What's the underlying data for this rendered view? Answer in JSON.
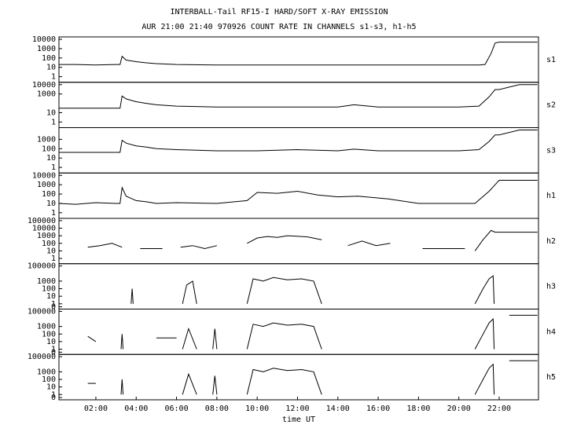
{
  "chart_data": [
    {
      "type": "line",
      "title": "INTERBALL-Tail RF15-I HARD/SOFT X-RAY EMISSION",
      "subtitle": "AUR 21:00 21:40 970926  COUNT RATE IN CHANNELS s1-s3, h1-h5",
      "label": "s1",
      "log_scale": true,
      "color": "#000000",
      "xlim": [
        0.17,
        23.95
      ],
      "ylim": [
        0.25,
        18000
      ],
      "yticks": [
        1,
        10,
        100,
        1000,
        10000
      ],
      "x": [
        0.17,
        1,
        2,
        3,
        3.2,
        3.3,
        3.5,
        4,
        4.5,
        5,
        6,
        8,
        10,
        12,
        14,
        16,
        18,
        20,
        21,
        21.3,
        21.6,
        21.8,
        22,
        23,
        23.9
      ],
      "values": [
        20,
        20,
        18,
        20,
        20,
        150,
        60,
        40,
        30,
        25,
        20,
        18,
        18,
        18,
        18,
        18,
        18,
        18,
        18,
        20,
        300,
        4000,
        5000,
        5000,
        5000
      ]
    },
    {
      "type": "line",
      "label": "s2",
      "log_scale": true,
      "color": "#000000",
      "xlim": [
        0.17,
        23.95
      ],
      "ylim": [
        0.25,
        18000
      ],
      "yticks": [
        1,
        10,
        1000,
        10000
      ],
      "x": [
        0.17,
        1,
        2,
        3,
        3.2,
        3.3,
        3.5,
        4,
        4.5,
        5,
        6,
        8,
        10,
        12,
        14,
        14.8,
        16,
        18,
        20,
        21,
        21.5,
        21.8,
        22,
        23,
        23.9
      ],
      "values": [
        30,
        30,
        30,
        30,
        30,
        600,
        300,
        150,
        100,
        70,
        50,
        40,
        40,
        40,
        40,
        70,
        40,
        40,
        40,
        50,
        500,
        3000,
        3000,
        10000,
        10000
      ]
    },
    {
      "type": "line",
      "label": "s3",
      "log_scale": true,
      "color": "#000000",
      "xlim": [
        0.17,
        23.95
      ],
      "ylim": [
        0.25,
        18000
      ],
      "yticks": [
        1,
        10,
        100,
        1000
      ],
      "x": [
        0.17,
        1,
        2,
        3,
        3.2,
        3.3,
        3.5,
        4,
        4.5,
        5,
        6,
        8,
        10,
        12,
        14,
        14.8,
        16,
        18,
        20,
        21,
        21.5,
        21.8,
        22,
        23,
        23.9
      ],
      "values": [
        40,
        40,
        40,
        40,
        40,
        800,
        400,
        200,
        150,
        100,
        80,
        60,
        60,
        80,
        60,
        90,
        60,
        60,
        60,
        80,
        600,
        3000,
        3000,
        10000,
        10000
      ]
    },
    {
      "type": "line",
      "label": "h1",
      "log_scale": true,
      "color": "#000000",
      "xlim": [
        0.17,
        23.95
      ],
      "ylim": [
        0.25,
        18000
      ],
      "yticks": [
        1,
        10,
        100,
        1000,
        10000
      ],
      "x": [
        0.17,
        1,
        2,
        3,
        3.2,
        3.3,
        3.5,
        4,
        4.5,
        5,
        6,
        8,
        9.5,
        10,
        11,
        12,
        13,
        14,
        15,
        16.5,
        18,
        20,
        20.8,
        21.5,
        21.8,
        22,
        23,
        23.9
      ],
      "values": [
        10,
        8,
        12,
        10,
        10,
        500,
        60,
        20,
        15,
        10,
        12,
        10,
        20,
        150,
        120,
        200,
        80,
        50,
        60,
        30,
        10,
        10,
        10,
        200,
        1000,
        3000,
        3000,
        3000
      ]
    },
    {
      "type": "line",
      "label": "h2",
      "log_scale": true,
      "color": "#000000",
      "xlim": [
        0.17,
        23.95
      ],
      "ylim": [
        0.2,
        200000
      ],
      "yticks": [
        1,
        10,
        100,
        1000,
        10000,
        100000
      ],
      "x": [
        1.6,
        2.2,
        2.8,
        3.3,
        3.6,
        4.2,
        5.3,
        5.6,
        6.2,
        6.8,
        7.4,
        8.0,
        8.5,
        9.5,
        10,
        10.5,
        11,
        11.5,
        12.5,
        13.2,
        13.8,
        14.5,
        15.2,
        15.9,
        16.6,
        17.5,
        18.2,
        20.3,
        20.5,
        20.8,
        21.2,
        21.6,
        21.8,
        22,
        23,
        23.9
      ],
      "values": [
        30,
        50,
        100,
        30,
        null,
        20,
        20,
        null,
        30,
        50,
        20,
        50,
        null,
        100,
        500,
        800,
        600,
        1000,
        700,
        300,
        null,
        50,
        200,
        50,
        100,
        null,
        20,
        20,
        null,
        10,
        300,
        5000,
        3000,
        3000,
        3000,
        3000
      ]
    },
    {
      "type": "line",
      "label": "h3",
      "log_scale": true,
      "color": "#000000",
      "xlim": [
        0.17,
        23.95
      ],
      "ylim": [
        0.2,
        200000
      ],
      "yticks": [
        {
          "value": 0.4,
          "label": "0"
        },
        1,
        10,
        100,
        1000,
        100000
      ],
      "x": [
        3.75,
        3.8,
        3.85,
        5,
        6.3,
        6.5,
        6.8,
        7,
        8,
        9.5,
        9.8,
        10.3,
        10.8,
        11.5,
        12.2,
        12.8,
        13.2,
        15,
        20.8,
        21.2,
        21.5,
        21.7,
        21.75
      ],
      "values": [
        1,
        100,
        1,
        null,
        1,
        300,
        1000,
        1,
        null,
        1,
        2000,
        1000,
        3000,
        1500,
        2000,
        1000,
        1,
        null,
        1,
        100,
        2000,
        5000,
        1
      ]
    },
    {
      "type": "line",
      "label": "h4",
      "log_scale": true,
      "color": "#000000",
      "xlim": [
        0.17,
        23.95
      ],
      "ylim": [
        0.2,
        200000
      ],
      "yticks": [
        {
          "value": 0.4,
          "label": "0"
        },
        1,
        10,
        100,
        1000,
        100000
      ],
      "x": [
        1.6,
        2,
        2.5,
        3.25,
        3.3,
        3.35,
        4,
        5,
        6,
        6.2,
        6.3,
        6.6,
        7,
        7.4,
        7.8,
        7.9,
        8,
        9,
        9.5,
        9.8,
        10.3,
        10.8,
        11.5,
        12.2,
        12.8,
        13.2,
        15,
        20.8,
        21.2,
        21.5,
        21.7,
        21.75,
        22.2,
        22.5,
        23.9
      ],
      "values": [
        50,
        10,
        null,
        1,
        100,
        1,
        null,
        30,
        30,
        null,
        1,
        500,
        1,
        null,
        1,
        500,
        1,
        null,
        1,
        2000,
        1000,
        3000,
        1500,
        2000,
        1000,
        1,
        null,
        1,
        100,
        3000,
        10000,
        1,
        null,
        30000,
        30000
      ]
    },
    {
      "type": "line",
      "label": "h5",
      "log_scale": true,
      "color": "#000000",
      "xlim": [
        0.17,
        23.95
      ],
      "ylim": [
        0.2,
        200000
      ],
      "yticks": [
        {
          "value": 0.4,
          "label": "0"
        },
        1,
        10,
        100,
        1000,
        100000
      ],
      "xticks": [
        {
          "value": 2,
          "label": "02:00"
        },
        {
          "value": 4,
          "label": "04:00"
        },
        {
          "value": 6,
          "label": "06:00"
        },
        {
          "value": 8,
          "label": "08:00"
        },
        {
          "value": 10,
          "label": "10:00"
        },
        {
          "value": 12,
          "label": "12:00"
        },
        {
          "value": 14,
          "label": "14:00"
        },
        {
          "value": 16,
          "label": "16:00"
        },
        {
          "value": 18,
          "label": "18:00"
        },
        {
          "value": 20,
          "label": "20:00"
        },
        {
          "value": 22,
          "label": "22:00"
        }
      ],
      "x_label": "time UT",
      "x": [
        1.6,
        2,
        2.5,
        3.25,
        3.3,
        3.35,
        4,
        6.3,
        6.6,
        7,
        7.4,
        7.8,
        7.9,
        8,
        9,
        9.5,
        9.8,
        10.3,
        10.8,
        11.5,
        12.2,
        12.8,
        13.2,
        15,
        20.8,
        21.2,
        21.5,
        21.7,
        21.75,
        22.2,
        22.5,
        23.9
      ],
      "values": [
        30,
        30,
        null,
        1,
        100,
        1,
        null,
        1,
        500,
        1,
        null,
        1,
        300,
        1,
        null,
        1,
        2000,
        1000,
        3000,
        1500,
        2000,
        1000,
        1,
        null,
        1,
        100,
        3000,
        10000,
        1,
        null,
        30000,
        30000
      ]
    }
  ]
}
